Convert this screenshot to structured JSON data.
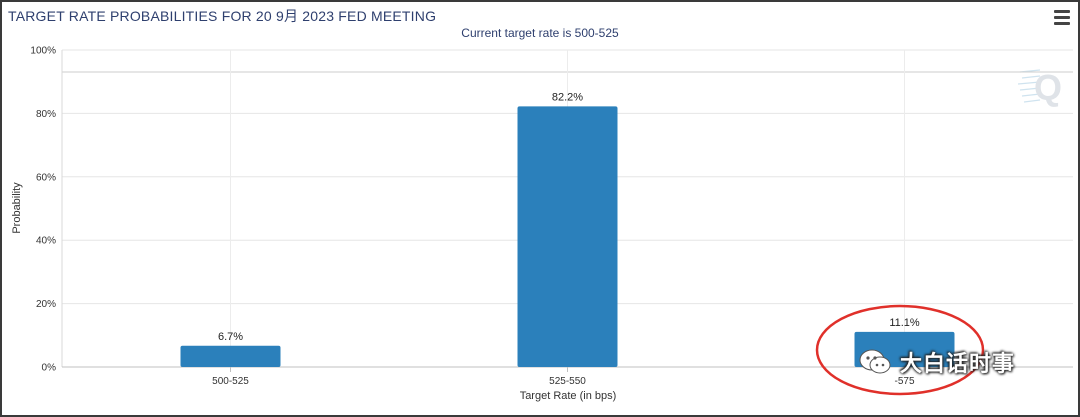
{
  "title": "TARGET RATE PROBABILITIES FOR 20 9月 2023 FED MEETING",
  "subtitle": "Current target rate is 500-525",
  "menu_icon": "hamburger-menu-icon",
  "watermark_icon": "q-logo-icon",
  "badge": {
    "icon": "wechat-icon",
    "text": "大白话时事"
  },
  "colors": {
    "bar": "#2b80bb",
    "annotation_circle": "#e0302a",
    "title": "#2e3f6e"
  },
  "chart_data": {
    "type": "bar",
    "categories": [
      "500-525",
      "525-550",
      "550-575"
    ],
    "category_tick_labels": [
      "500-525",
      "525-550",
      "-575"
    ],
    "values": [
      6.7,
      82.2,
      11.1
    ],
    "data_labels": [
      "6.7%",
      "82.2%",
      "11.1%"
    ],
    "xlabel": "Target Rate (in bps)",
    "ylabel": "Probability",
    "ylim": [
      0,
      100
    ],
    "yticks": [
      0,
      20,
      40,
      60,
      80,
      100
    ],
    "ytick_labels": [
      "0%",
      "20%",
      "40%",
      "60%",
      "80%",
      "100%"
    ],
    "grid": true,
    "annotation": {
      "type": "ellipse",
      "around_category": "550-575"
    }
  }
}
